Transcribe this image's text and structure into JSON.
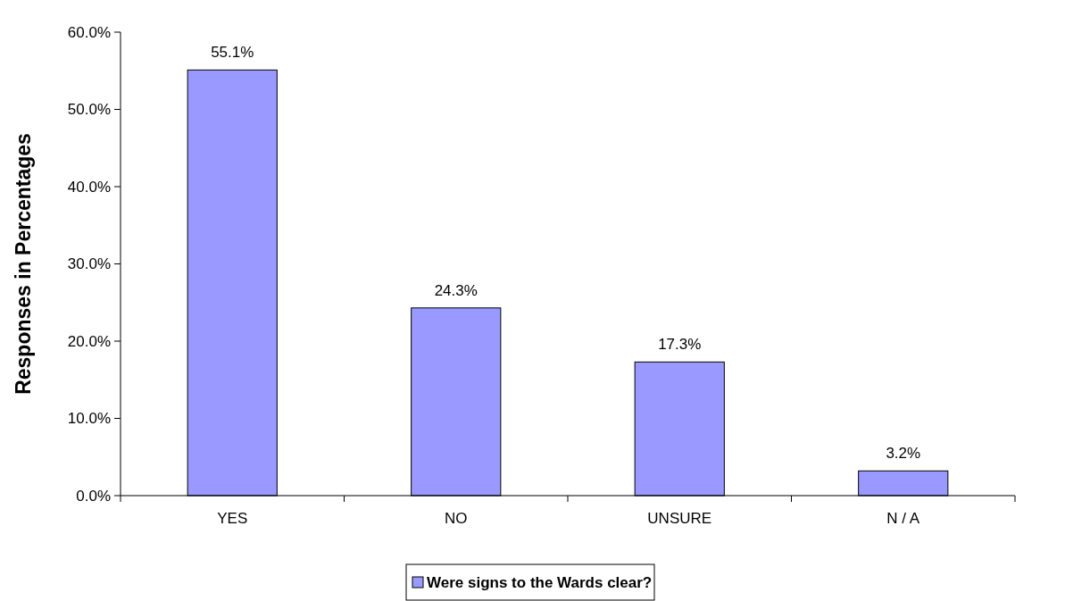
{
  "chart_data": {
    "type": "bar",
    "ylabel": "Responses in Percentages",
    "categories": [
      "YES",
      "NO",
      "UNSURE",
      "N / A"
    ],
    "series": [
      {
        "name": "Were signs to the Wards clear?",
        "color": "#9999ff",
        "values": [
          55.1,
          24.3,
          17.3,
          3.2
        ],
        "value_labels": [
          "55.1%",
          "24.3%",
          "17.3%",
          "3.2%"
        ]
      }
    ],
    "ylim": [
      0,
      60
    ],
    "yticks": [
      {
        "value": 0,
        "label": "0.0%"
      },
      {
        "value": 10,
        "label": "10.0%"
      },
      {
        "value": 20,
        "label": "20.0%"
      },
      {
        "value": 30,
        "label": "30.0%"
      },
      {
        "value": 40,
        "label": "40.0%"
      },
      {
        "value": 50,
        "label": "50.0%"
      },
      {
        "value": 60,
        "label": "60.0%"
      }
    ],
    "grid": false,
    "legend": "bottom"
  }
}
